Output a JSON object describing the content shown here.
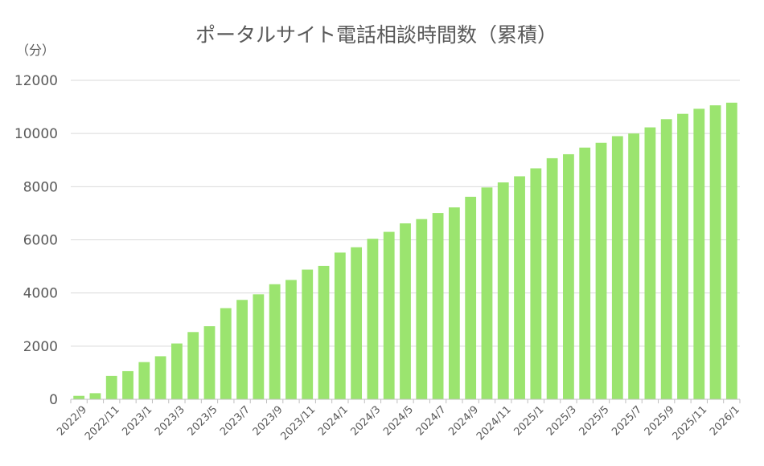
{
  "chart_data": {
    "type": "bar",
    "title": "ポータルサイト電話相談時間数（累積）",
    "unit_label": "（分）",
    "xlabel": "",
    "ylabel": "",
    "ylim": [
      0,
      12000
    ],
    "yticks": [
      "0",
      "2000",
      "4000",
      "6000",
      "8000",
      "10000",
      "12000"
    ],
    "grid": true,
    "legend": "none",
    "bar_color": "#9be46f",
    "categories": [
      "2022/9",
      "2022/10",
      "2022/11",
      "2022/12",
      "2023/1",
      "2023/2",
      "2023/3",
      "2023/4",
      "2023/5",
      "2023/6",
      "2023/7",
      "2023/8",
      "2023/9",
      "2023/10",
      "2023/11",
      "2023/12",
      "2024/1",
      "2024/2",
      "2024/3",
      "2024/4",
      "2024/5",
      "2024/6",
      "2024/7",
      "2024/8",
      "2024/9",
      "2024/10",
      "2024/11",
      "2024/12",
      "2025/1",
      "2025/2",
      "2025/3",
      "2025/4",
      "2025/5",
      "2025/6",
      "2025/7",
      "2025/8",
      "2025/9",
      "2025/10",
      "2025/11",
      "2025/12",
      "2026/1"
    ],
    "tick_labels": [
      "2022/9",
      "2022/11",
      "2023/1",
      "2023/3",
      "2023/5",
      "2023/7",
      "2023/9",
      "2023/11",
      "2024/1",
      "2024/3",
      "2024/5",
      "2024/7",
      "2024/9",
      "2024/11",
      "2025/1",
      "2025/3",
      "2025/5",
      "2025/7",
      "2025/9",
      "2025/11",
      "2026/1"
    ],
    "values": [
      130,
      230,
      880,
      1060,
      1400,
      1620,
      2100,
      2530,
      2750,
      3430,
      3740,
      3950,
      4330,
      4490,
      4880,
      5020,
      5520,
      5720,
      6040,
      6300,
      6620,
      6780,
      7010,
      7220,
      7620,
      7970,
      8160,
      8390,
      8690,
      9070,
      9220,
      9470,
      9650,
      9900,
      10000,
      10230,
      10540,
      10740,
      10930,
      11060,
      11160
    ]
  }
}
